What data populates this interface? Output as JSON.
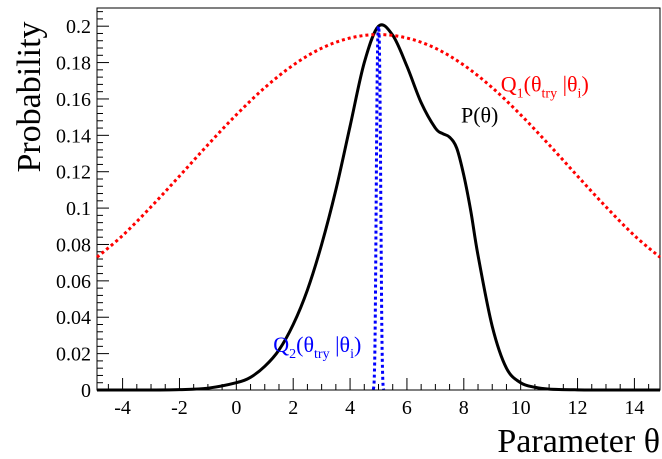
{
  "chart_data": {
    "type": "line",
    "title": "",
    "xlabel": "Parameter θ",
    "ylabel": "Probability",
    "xlim": [
      -4.9,
      14.9
    ],
    "ylim": [
      0,
      0.21
    ],
    "xticks": [
      -4,
      -2,
      0,
      2,
      4,
      6,
      8,
      10,
      12,
      14
    ],
    "xtick_labels": [
      "-4",
      "-2",
      "0",
      "2",
      "4",
      "6",
      "8",
      "10",
      "12",
      "14"
    ],
    "yticks": [
      0,
      0.02,
      0.04,
      0.06,
      0.08,
      0.1,
      0.12,
      0.14,
      0.16,
      0.18,
      0.2
    ],
    "ytick_labels": [
      "0",
      "0.02",
      "0.04",
      "0.06",
      "0.08",
      "0.1",
      "0.12",
      "0.14",
      "0.16",
      "0.18",
      "0.2"
    ],
    "grid": false,
    "series": [
      {
        "name": "P(θ)",
        "color": "#000000",
        "style": "solid",
        "x": [
          -4.9,
          -4,
          -3,
          -2,
          -1,
          0,
          0.5,
          1,
          1.5,
          2,
          2.5,
          3,
          3.5,
          4,
          4.5,
          5,
          5.5,
          6,
          6.5,
          7,
          7.25,
          7.5,
          7.75,
          8,
          8.25,
          8.5,
          9,
          9.5,
          10,
          10.5,
          11,
          12,
          13,
          14,
          14.9
        ],
        "values": [
          0,
          0,
          0,
          0.0002,
          0.001,
          0.004,
          0.007,
          0.013,
          0.022,
          0.036,
          0.055,
          0.08,
          0.11,
          0.145,
          0.18,
          0.2,
          0.195,
          0.178,
          0.158,
          0.144,
          0.141,
          0.139,
          0.133,
          0.118,
          0.098,
          0.074,
          0.035,
          0.012,
          0.004,
          0.0015,
          0.0005,
          0.0001,
          0,
          0,
          0
        ]
      },
      {
        "name": "Q₁(θtry|θi)",
        "color": "#ff0000",
        "style": "dotted",
        "x": [
          -4.9,
          -4,
          -3,
          -2,
          -1,
          0,
          1,
          2,
          3,
          4,
          5,
          6,
          7,
          8,
          9,
          10,
          11,
          12,
          13,
          14,
          14.9
        ],
        "values": [
          0.073,
          0.0849,
          0.1007,
          0.1176,
          0.1348,
          0.1513,
          0.1662,
          0.1786,
          0.1879,
          0.1935,
          0.1954,
          0.1935,
          0.1879,
          0.1786,
          0.1662,
          0.1513,
          0.1348,
          0.1176,
          0.1007,
          0.0849,
          0.073
        ]
      },
      {
        "name": "Q₂(θtry|θi)",
        "color": "#0000ff",
        "style": "dotted",
        "x": [
          4.82,
          4.85,
          4.88,
          4.91,
          4.94,
          4.97,
          5,
          5.03,
          5.06,
          5.09,
          5.12,
          5.15,
          5.18
        ],
        "values": [
          0.0003,
          0.006,
          0.03,
          0.085,
          0.15,
          0.19,
          0.2,
          0.19,
          0.15,
          0.085,
          0.03,
          0.006,
          0.0003
        ]
      }
    ],
    "annotations": [
      {
        "id": "p",
        "main": "P(θ)",
        "x": 7.9,
        "y": 0.147,
        "color": "#000000"
      },
      {
        "id": "q1",
        "main": "Q",
        "sub1": "1",
        "mid": "(θ",
        "sub2": "try",
        "mid2": " |θ",
        "sub3": "i",
        "end": ")",
        "x": 9.3,
        "y": 0.164,
        "color": "#ff0000"
      },
      {
        "id": "q2",
        "main": "Q",
        "sub1": "2",
        "mid": "(θ",
        "sub2": "try",
        "mid2": " |θ",
        "sub3": "i",
        "end": ")",
        "x": 1.3,
        "y": 0.021,
        "color": "#0000ff"
      }
    ]
  }
}
